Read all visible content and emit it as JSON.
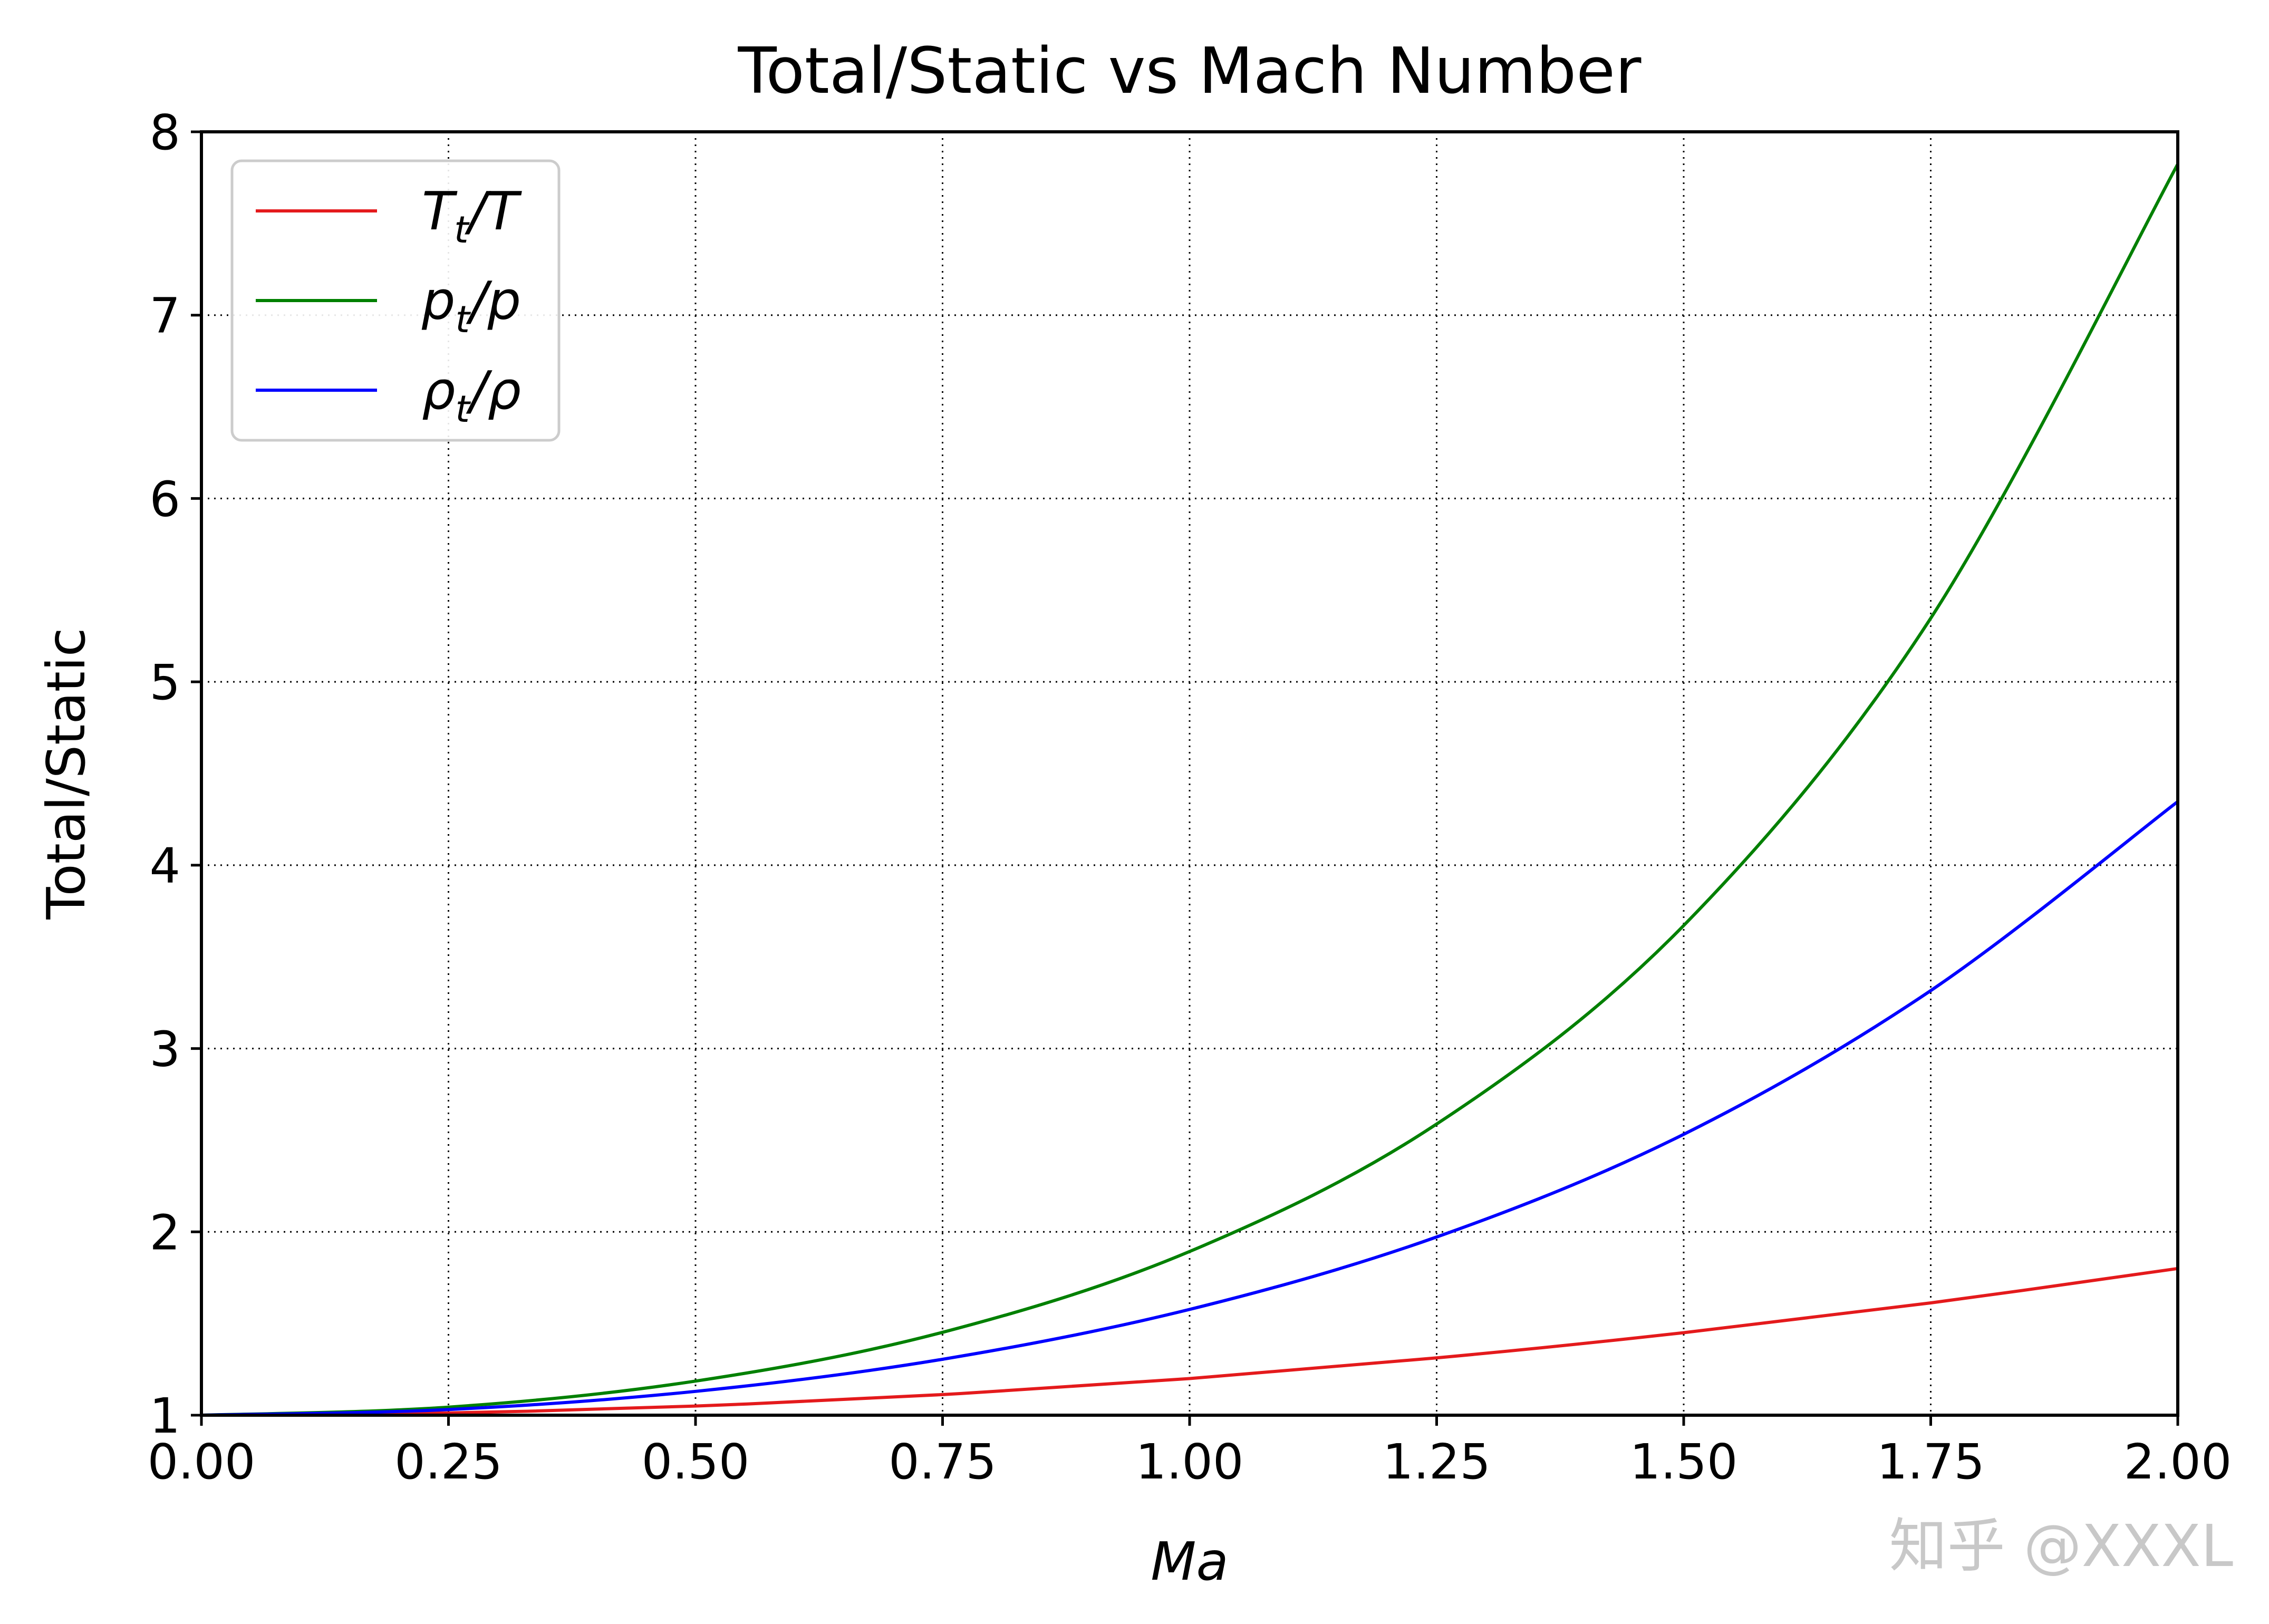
{
  "chart_data": {
    "type": "line",
    "title": "Total/Static vs Mach Number",
    "xlabel": "Ma",
    "ylabel": "Total/Static",
    "xlim": [
      0,
      2
    ],
    "ylim": [
      1,
      8
    ],
    "x_ticks": [
      "0.00",
      "0.25",
      "0.50",
      "0.75",
      "1.00",
      "1.25",
      "1.50",
      "1.75",
      "2.00"
    ],
    "y_ticks": [
      "1",
      "2",
      "3",
      "4",
      "5",
      "6",
      "7",
      "8"
    ],
    "grid": true,
    "grid_style": "dotted",
    "legend_position": "top-left",
    "x": [
      0.0,
      0.25,
      0.5,
      0.75,
      1.0,
      1.25,
      1.5,
      1.75,
      2.0
    ],
    "series": [
      {
        "name": "Tt/T",
        "color": "#e41a1c",
        "values": [
          1.0,
          1.0125,
          1.05,
          1.1125,
          1.2,
          1.3125,
          1.45,
          1.6125,
          1.8
        ]
      },
      {
        "name": "pt/p",
        "color": "#008000",
        "values": [
          1.0,
          1.044,
          1.186,
          1.452,
          1.893,
          2.588,
          3.671,
          5.347,
          7.824
        ]
      },
      {
        "name": "ρt/ρ",
        "color": "#0000ff",
        "values": [
          1.0,
          1.031,
          1.13,
          1.305,
          1.577,
          1.972,
          2.532,
          3.316,
          4.347
        ]
      }
    ],
    "legend_labels": [
      {
        "base": "T",
        "sub": "t",
        "tail": "/T"
      },
      {
        "base": "p",
        "sub": "t",
        "tail": "/p"
      },
      {
        "base": "ρ",
        "sub": "t",
        "tail": "/ρ"
      }
    ]
  },
  "watermark": "知乎 @XXXL"
}
